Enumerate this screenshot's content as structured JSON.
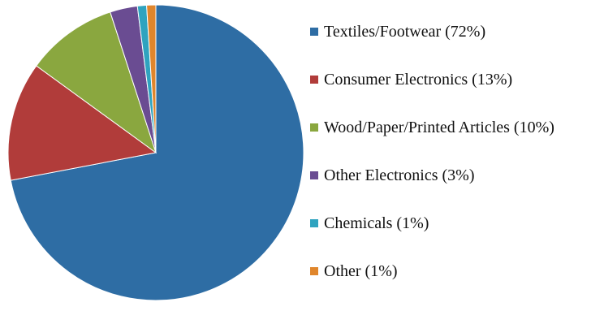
{
  "chart_data": {
    "type": "pie",
    "categories": [
      "Textiles/Footwear",
      "Consumer Electronics",
      "Wood/Paper/Printed Articles",
      "Other Electronics",
      "Chemicals",
      "Other"
    ],
    "values": [
      72,
      13,
      10,
      3,
      1,
      1
    ],
    "legend_labels": [
      "Textiles/Footwear (72%)",
      "Consumer Electronics (13%)",
      "Wood/Paper/Printed Articles (10%)",
      "Other Electronics (3%)",
      "Chemicals (1%)",
      "Other (1%)"
    ],
    "colors": [
      "#2E6DA4",
      "#B13C3A",
      "#8AA73F",
      "#6A4C92",
      "#2FA3BF",
      "#E0862C"
    ],
    "legend_position": "right",
    "slice_order": "clockwise from 12 o'clock",
    "title": ""
  }
}
